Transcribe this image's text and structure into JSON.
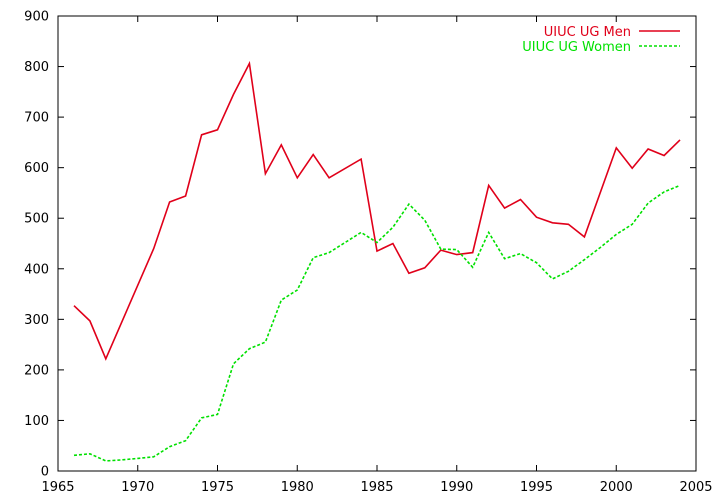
{
  "chart_data": {
    "type": "line",
    "title": "",
    "xlabel": "",
    "ylabel": "",
    "xlim": [
      1965,
      2005
    ],
    "ylim": [
      0,
      900
    ],
    "x_ticks": [
      1965,
      1970,
      1975,
      1980,
      1985,
      1990,
      1995,
      2000,
      2005
    ],
    "y_ticks": [
      0,
      100,
      200,
      300,
      400,
      500,
      600,
      700,
      800,
      900
    ],
    "grid": false,
    "legend_position": "top-right",
    "series": [
      {
        "name": "UIUC UG Men",
        "color": "#e0001a",
        "dash": "solid",
        "x": [
          1966,
          1967,
          1968,
          1971,
          1972,
          1973,
          1974,
          1975,
          1976,
          1977,
          1978,
          1979,
          1980,
          1981,
          1982,
          1984,
          1985,
          1986,
          1987,
          1988,
          1989,
          1990,
          1991,
          1992,
          1993,
          1994,
          1995,
          1996,
          1997,
          1998,
          2000,
          2001,
          2002,
          2003,
          2004
        ],
        "y": [
          327,
          297,
          222,
          440,
          532,
          544,
          665,
          675,
          745,
          806,
          588,
          645,
          580,
          626,
          580,
          617,
          435,
          450,
          391,
          402,
          437,
          428,
          432,
          565,
          520,
          537,
          502,
          491,
          488,
          463,
          639,
          599,
          637,
          624,
          655
        ]
      },
      {
        "name": "UIUC UG Women",
        "color": "#00e000",
        "dash": "dashed",
        "x": [
          1966,
          1967,
          1968,
          1969,
          1970,
          1971,
          1972,
          1973,
          1974,
          1975,
          1976,
          1977,
          1978,
          1979,
          1980,
          1981,
          1982,
          1983,
          1984,
          1985,
          1986,
          1987,
          1988,
          1989,
          1990,
          1991,
          1992,
          1993,
          1994,
          1995,
          1996,
          1997,
          1998,
          1999,
          2000,
          2001,
          2002,
          2003,
          2004
        ],
        "y": [
          31,
          34,
          20,
          22,
          25,
          28,
          48,
          60,
          105,
          112,
          212,
          242,
          255,
          338,
          358,
          422,
          432,
          452,
          472,
          452,
          482,
          528,
          496,
          439,
          438,
          403,
          472,
          420,
          430,
          412,
          380,
          395,
          418,
          442,
          468,
          488,
          530,
          552,
          565
        ]
      }
    ]
  }
}
